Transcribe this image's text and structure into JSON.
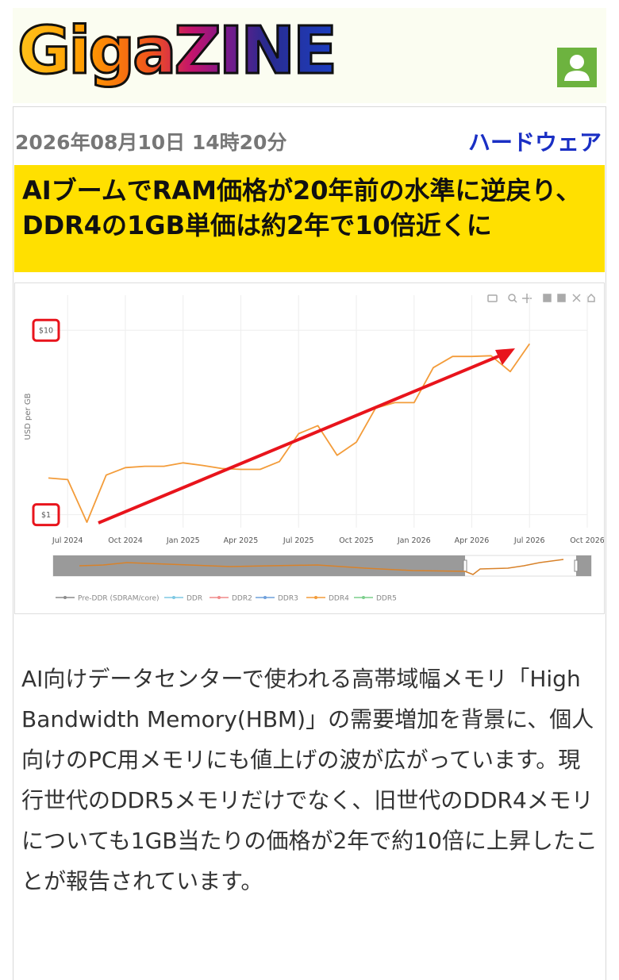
{
  "header": {
    "logo": "GigaZINE"
  },
  "article": {
    "date": "2026年08月10日 14時20分",
    "category": "ハードウェア",
    "title": "AIブームでRAM価格が20年前の水準に逆戻り、DDR4の1GB単価は約2年で10倍近くに",
    "body": "AI向けデータセンターで使われる高帯域幅メモリ「High Bandwidth Memory(HBM)」の需要増加を背景に、個人向けのPC用メモリにも値上げの波が広がっています。現行世代のDDR5メモリだけでなく、旧世代のDDR4メモリについても1GB当たりの価格が2年で約10倍に上昇したことが報告されています。"
  },
  "chart_data": {
    "type": "line",
    "y_label": "USD per GB",
    "log_y": true,
    "grid": true,
    "x": [
      "2024-06",
      "2024-07",
      "2024-08",
      "2024-09",
      "2024-10",
      "2024-11",
      "2024-12",
      "2025-01",
      "2025-02",
      "2025-03",
      "2025-04",
      "2025-05",
      "2025-06",
      "2025-07",
      "2025-08",
      "2025-09",
      "2025-10",
      "2025-11",
      "2025-12",
      "2026-01",
      "2026-02",
      "2026-03",
      "2026-04",
      "2026-05",
      "2026-06",
      "2026-07"
    ],
    "xlim": [
      "2024-06",
      "2026-10"
    ],
    "xticks": [
      {
        "value": "2024-07",
        "label": "Jul 2024"
      },
      {
        "value": "2024-10",
        "label": "Oct 2024"
      },
      {
        "value": "2025-01",
        "label": "Jan 2025"
      },
      {
        "value": "2025-04",
        "label": "Apr 2025"
      },
      {
        "value": "2025-07",
        "label": "Jul 2025"
      },
      {
        "value": "2025-10",
        "label": "Oct 2025"
      },
      {
        "value": "2026-01",
        "label": "Jan 2026"
      },
      {
        "value": "2026-04",
        "label": "Apr 2026"
      },
      {
        "value": "2026-07",
        "label": "Jul 2026"
      },
      {
        "value": "2026-10",
        "label": "Oct 2026"
      }
    ],
    "ylim": [
      0.85,
      15.5
    ],
    "yticks": [
      {
        "value": 1,
        "label": "$1"
      },
      {
        "value": 10,
        "label": "$10"
      }
    ],
    "series": [
      {
        "name": "Pre-DDR (SDRAM/core)",
        "color": "#8c8c8c"
      },
      {
        "name": "DDR",
        "color": "#7ec8e3"
      },
      {
        "name": "DDR2",
        "color": "#f08a8a"
      },
      {
        "name": "DDR3",
        "color": "#6fa0dc"
      },
      {
        "name": "DDR4",
        "color": "#f39c3a",
        "values": [
          1.58,
          1.55,
          0.91,
          1.64,
          1.8,
          1.83,
          1.83,
          1.91,
          1.85,
          1.78,
          1.76,
          1.76,
          1.94,
          2.75,
          3.04,
          2.1,
          2.47,
          3.78,
          4.05,
          4.05,
          6.27,
          7.21,
          7.21,
          7.28,
          5.97,
          8.45
        ]
      },
      {
        "name": "DDR5",
        "color": "#7ccf8c"
      }
    ]
  }
}
